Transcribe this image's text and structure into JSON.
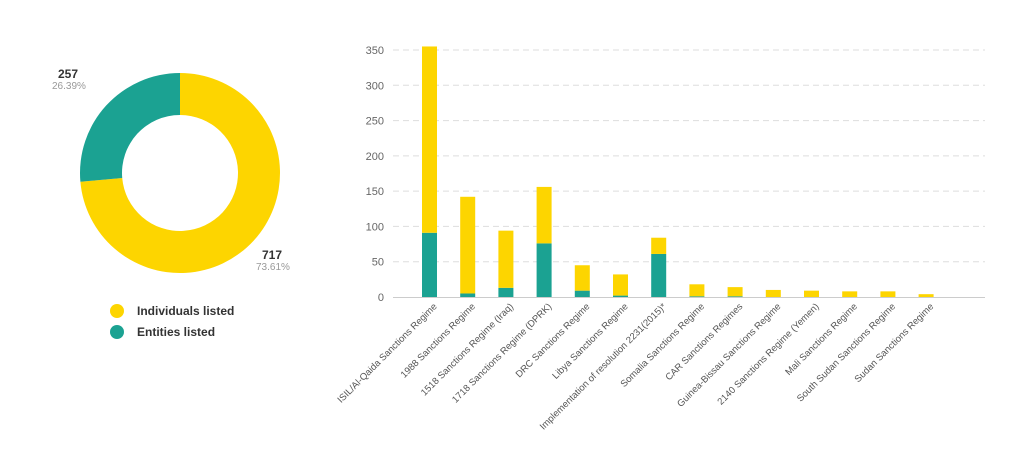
{
  "chart_data": [
    {
      "type": "pie",
      "donut": true,
      "slices": [
        {
          "name": "Individuals listed",
          "value": 717,
          "value_label": "717",
          "percent_label": "73.61%",
          "color": "#FDD500"
        },
        {
          "name": "Entities listed",
          "value": 257,
          "value_label": "257",
          "percent_label": "26.39%",
          "color": "#1BA292"
        }
      ],
      "legend": [
        "Individuals listed",
        "Entities listed"
      ],
      "legend_placement": "bottom"
    },
    {
      "type": "bar",
      "stacked": true,
      "categories": [
        "ISIL/Al-Qaida Sanctions Regime",
        "1988 Sanctions Regime",
        "1518 Sanctions Regime (Iraq)",
        "1718 Sanctions Regime (DPRK)",
        "DRC Sanctions Regime",
        "Libya Sanctions Regime",
        "Implementation of resolution 2231(2015)*",
        "Somalia Sanctions Regime",
        "CAR Sanctions Regimes",
        "Guinea-Bissau Sanctions Regime",
        "2140 Sanctions Regime (Yemen)",
        "Mali Sanctions Regime",
        "South Sudan Sanctions Regime",
        "Sudan Sanctions Regime"
      ],
      "series": [
        {
          "name": "Entities listed",
          "color": "#1BA292",
          "values": [
            91,
            5,
            13,
            76,
            9,
            2,
            61,
            1,
            1,
            0,
            0,
            0,
            0,
            0
          ]
        },
        {
          "name": "Individuals listed",
          "color": "#FDD500",
          "values": [
            264,
            137,
            81,
            80,
            36,
            30,
            23,
            17,
            13,
            10,
            9,
            8,
            8,
            4
          ]
        }
      ],
      "ylim": [
        0,
        350
      ],
      "yticks": [
        0,
        50,
        100,
        150,
        200,
        250,
        300,
        350
      ],
      "grid": true
    }
  ]
}
